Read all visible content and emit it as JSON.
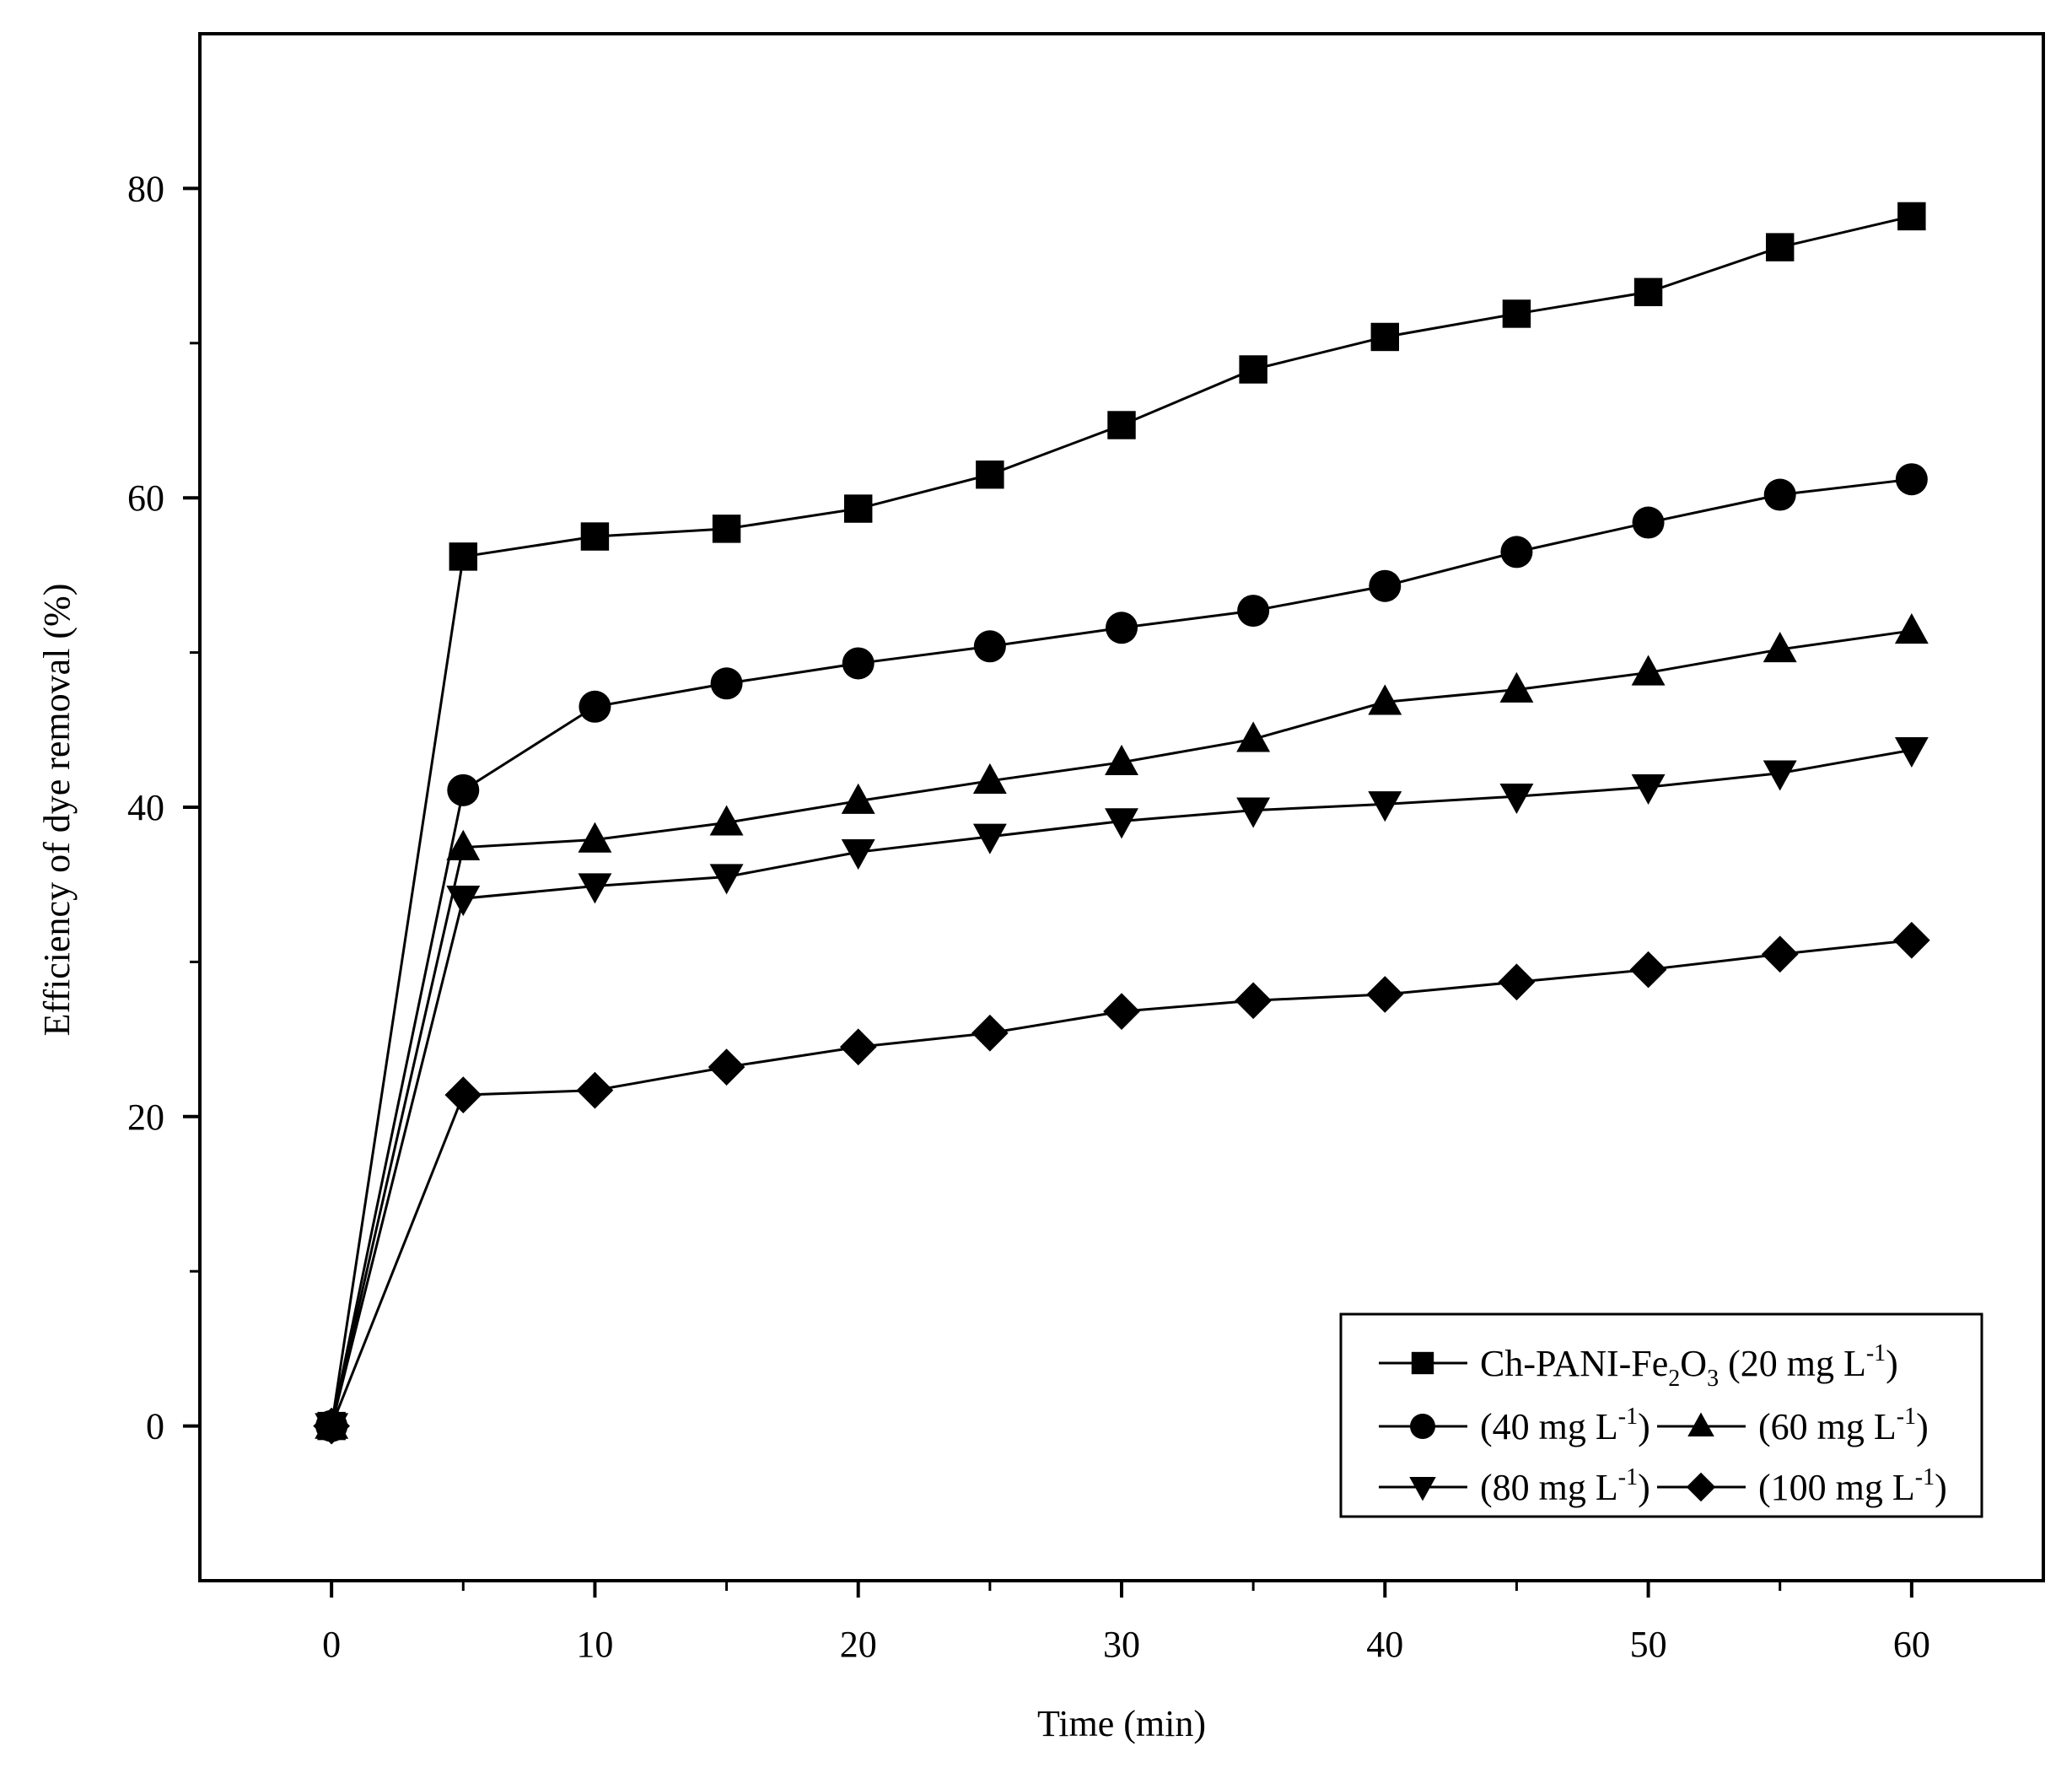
{
  "chart_data": {
    "type": "line",
    "title": "",
    "xlabel": "Time (min)",
    "ylabel": "Efficiency of dye removal (%)",
    "xlim": [
      -5,
      65
    ],
    "ylim": [
      -10,
      90
    ],
    "x_major_ticks": [
      0,
      10,
      20,
      30,
      40,
      50,
      60
    ],
    "x_tick_labels": [
      "0",
      "10",
      "20",
      "30",
      "40",
      "50",
      "60"
    ],
    "x_minor_ticks": [
      5,
      15,
      25,
      35,
      45,
      55
    ],
    "y_major_ticks": [
      0,
      20,
      40,
      60,
      80
    ],
    "y_tick_labels": [
      "0",
      "20",
      "40",
      "60",
      "80"
    ],
    "y_minor_ticks": [
      10,
      30,
      50,
      70
    ],
    "grid": false,
    "legend_position": "bottom-right",
    "line_color": "#000000",
    "x": [
      0,
      5,
      10,
      15,
      20,
      25,
      30,
      35,
      40,
      45,
      50,
      55,
      60
    ],
    "series": [
      {
        "legend_main": "Ch-PANI-Fe",
        "legend_sub1": "2",
        "legend_mid": "O",
        "legend_sub2": "3",
        "legend_tail": " (20 mg L",
        "legend_sup": "-1",
        "legend_end": ")",
        "marker": "square",
        "values": [
          0,
          56.2,
          57.5,
          58.0,
          59.3,
          61.5,
          64.7,
          68.3,
          70.4,
          71.9,
          73.3,
          76.2,
          78.2
        ]
      },
      {
        "legend_main": "(40 mg L",
        "legend_sup": "-1",
        "legend_end": ")",
        "marker": "circle",
        "values": [
          0,
          41.1,
          46.5,
          48.0,
          49.3,
          50.4,
          51.6,
          52.7,
          54.3,
          56.5,
          58.4,
          60.2,
          61.2
        ]
      },
      {
        "legend_main": "(60 mg L",
        "legend_sup": "-1",
        "legend_end": ")",
        "marker": "triangle-up",
        "values": [
          0,
          37.4,
          37.9,
          39.0,
          40.4,
          41.7,
          42.9,
          44.4,
          46.8,
          47.6,
          48.7,
          50.2,
          51.4
        ]
      },
      {
        "legend_main": "(80 mg L",
        "legend_sup": "-1",
        "legend_end": ")",
        "marker": "triangle-down",
        "values": [
          0,
          34.1,
          34.9,
          35.5,
          37.1,
          38.1,
          39.1,
          39.8,
          40.2,
          40.7,
          41.3,
          42.2,
          43.7
        ]
      },
      {
        "legend_main": "(100 mg L",
        "legend_sup": "-1",
        "legend_end": ")",
        "marker": "diamond",
        "values": [
          0,
          21.4,
          21.7,
          23.2,
          24.5,
          25.4,
          26.8,
          27.5,
          27.9,
          28.7,
          29.5,
          30.5,
          31.4
        ]
      }
    ]
  }
}
